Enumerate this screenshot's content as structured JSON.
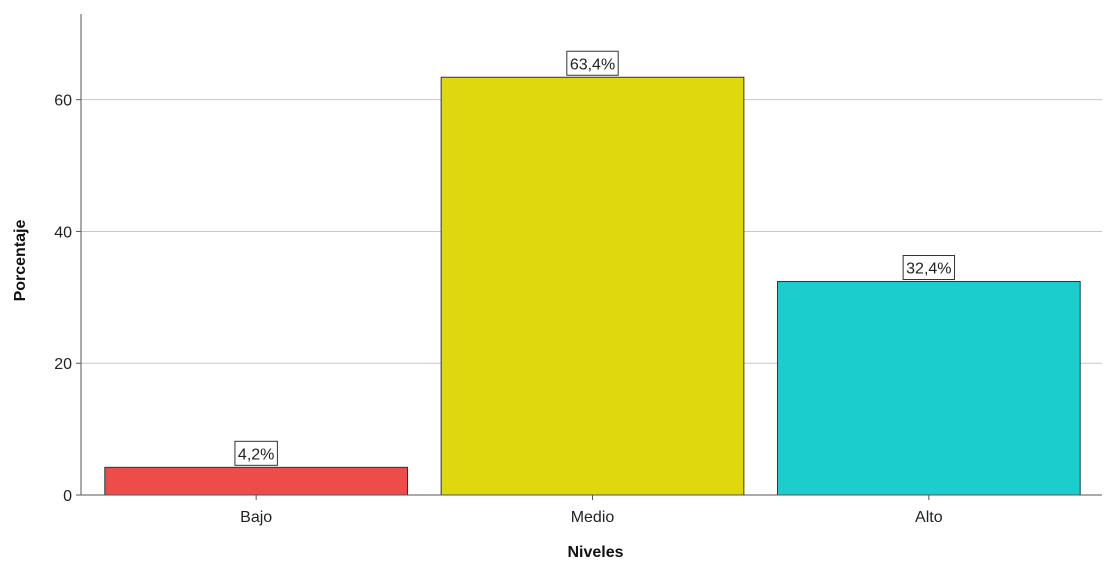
{
  "chart_data": {
    "type": "bar",
    "title": "",
    "xlabel": "Niveles",
    "ylabel": "Porcentaje",
    "categories": [
      "Bajo",
      "Medio",
      "Alto"
    ],
    "values": [
      4.2,
      63.4,
      32.4
    ],
    "data_labels": [
      "4,2%",
      "63,4%",
      "32,4%"
    ],
    "colors": [
      "#ee4b4b",
      "#e0d80f",
      "#1ccdcd"
    ],
    "ylim": [
      0,
      73
    ],
    "yticks": [
      0,
      20,
      40,
      60
    ],
    "ytick_labels": [
      "0",
      "20",
      "40",
      "60"
    ],
    "grid": true,
    "legend": false
  }
}
